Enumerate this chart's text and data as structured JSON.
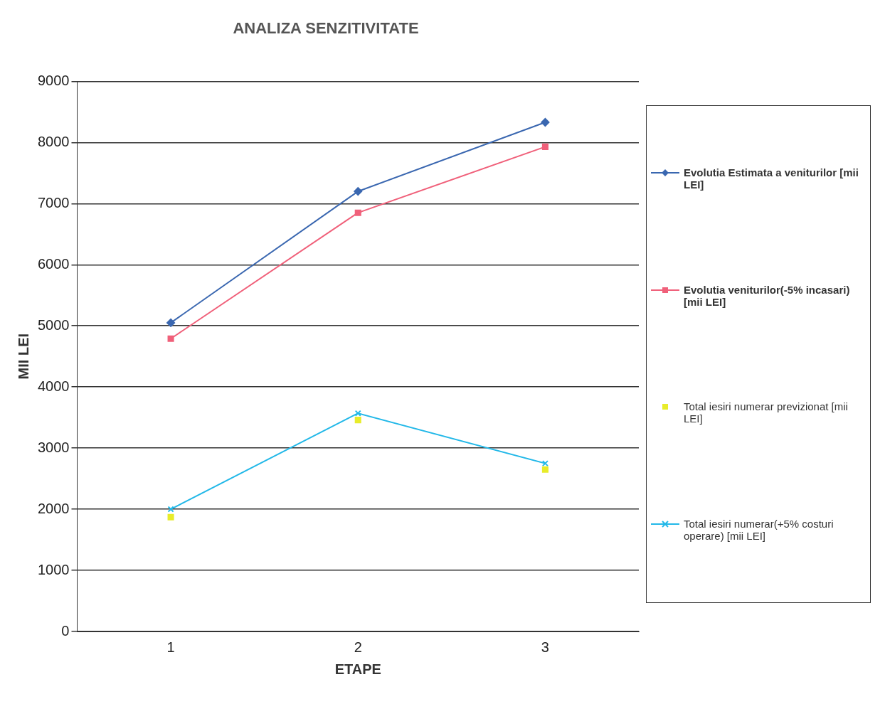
{
  "chart_data": {
    "type": "line",
    "title": "ANALIZA SENZITIVITATE",
    "xlabel": "ETAPE",
    "ylabel": "MII LEI",
    "categories": [
      "1",
      "2",
      "3"
    ],
    "ylim": [
      0,
      9000
    ],
    "yticks": [
      0,
      1000,
      2000,
      3000,
      4000,
      5000,
      6000,
      7000,
      8000,
      9000
    ],
    "grid": "y",
    "legend": "right",
    "series": [
      {
        "name": "Evolutia Estimata a veniturilor [mii LEI]",
        "color": "#3a67b0",
        "marker": "diamond",
        "values": [
          5050,
          7200,
          8330
        ]
      },
      {
        "name": "Evolutia veniturilor(-5% incasari) [mii LEI]",
        "color": "#f0607a",
        "marker": "square",
        "values": [
          4790,
          6850,
          7930
        ]
      },
      {
        "name": "Total iesiri numerar previzionat [mii LEI]",
        "type": "scatter",
        "color": "#e8ec2a",
        "marker": "square",
        "values": [
          1870,
          3460,
          2650
        ]
      },
      {
        "name": "Total iesiri numerar(+5% costuri operare) [mii LEI]",
        "color": "#22b8e8",
        "marker": "cross",
        "values": [
          2000,
          3570,
          2750
        ]
      }
    ]
  }
}
